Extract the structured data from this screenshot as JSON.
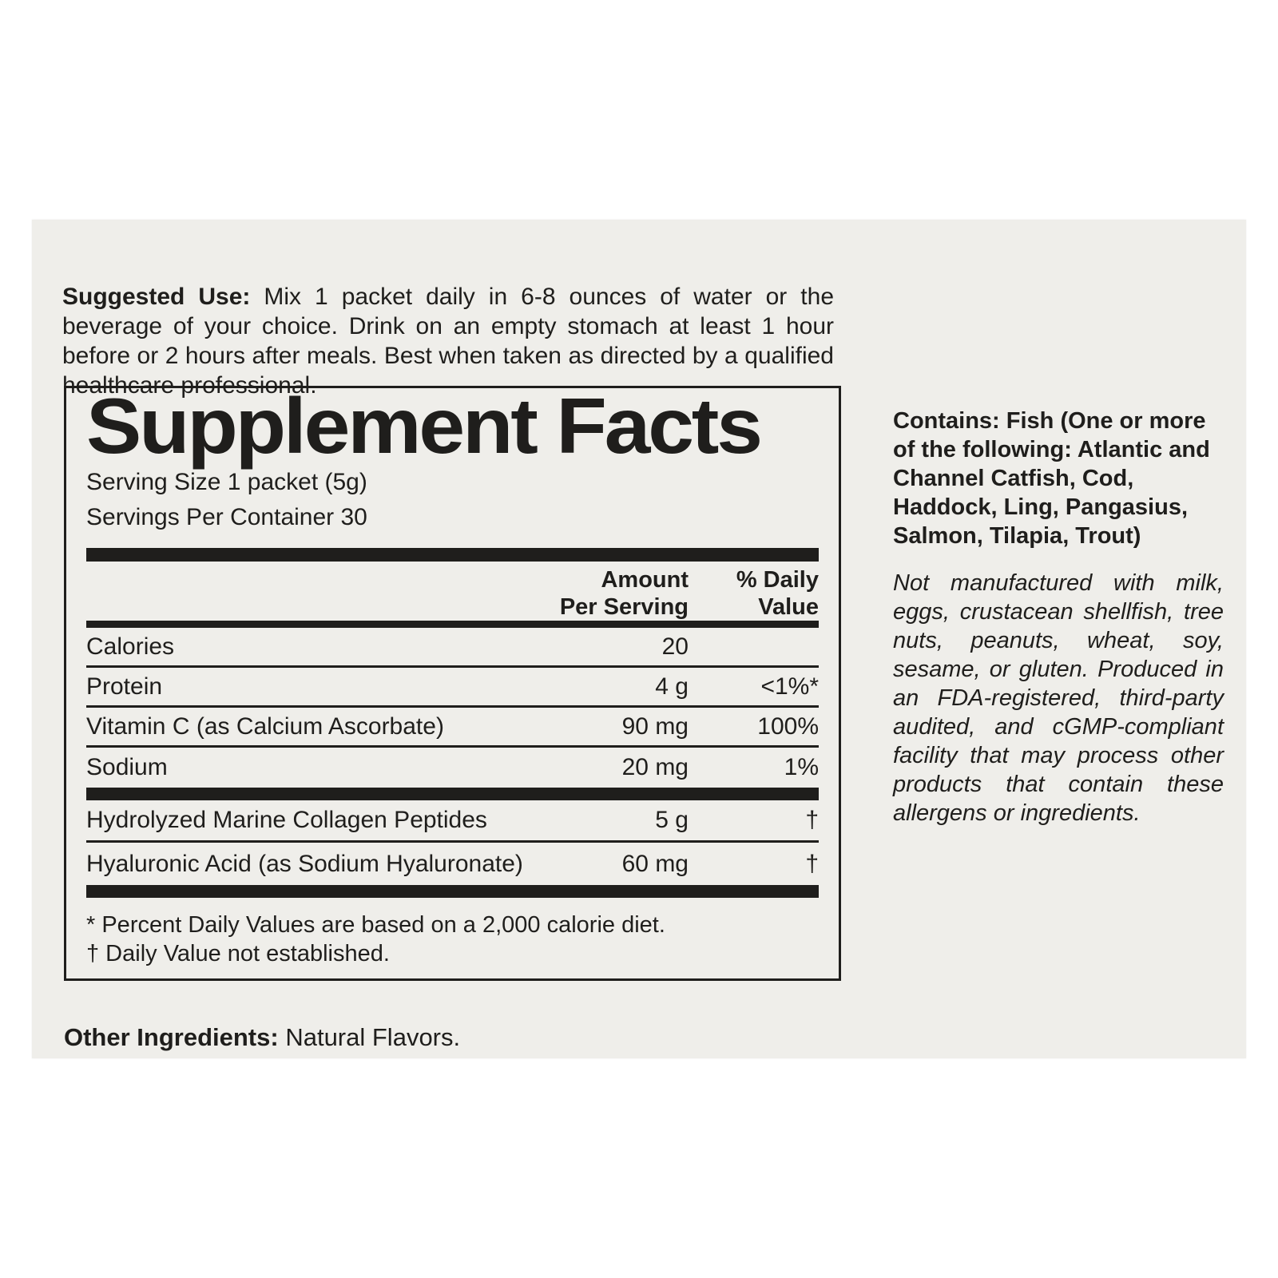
{
  "label": {
    "suggested_use": {
      "heading": "Suggested Use:",
      "text": "Mix 1 packet daily in 6-8 ounces of water or the beverage of your choice. Drink on an empty stomach at least 1 hour before or 2 hours after meals. Best when taken as directed by a qualified healthcare professional."
    },
    "supplement_facts": {
      "title": "Supplement Facts",
      "serving_size": "Serving Size 1 packet (5g)",
      "servings_per_container": "Servings Per Container 30",
      "header": {
        "amount": [
          "Amount",
          "Per Serving"
        ],
        "daily_value": [
          "% Daily",
          "Value"
        ]
      },
      "rows": [
        {
          "name": "Calories",
          "amount": "20",
          "dv": ""
        },
        {
          "name": "Protein",
          "amount": "4 g",
          "dv": "<1%*"
        },
        {
          "name": "Vitamin C (as Calcium Ascorbate)",
          "amount": "90 mg",
          "dv": "100%"
        },
        {
          "name": "Sodium",
          "amount": "20 mg",
          "dv": "1%"
        },
        {
          "name": "Hydrolyzed Marine Collagen Peptides",
          "amount": "5 g",
          "dv": "†"
        },
        {
          "name": "Hyaluronic Acid (as Sodium Hyaluronate)",
          "amount": "60 mg",
          "dv": "†"
        }
      ],
      "footnotes": [
        "* Percent Daily Values are based on a 2,000 calorie diet.",
        "† Daily Value not established."
      ]
    },
    "other_ingredients": {
      "heading": "Other Ingredients:",
      "text": "Natural Flavors."
    },
    "contains": "Contains: Fish (One or more of the following: Atlantic and Channel Catfish, Cod, Haddock, Ling, Pangasius, Salmon, Tilapia, Trout)",
    "allergen_note": "Not manufactured with milk, eggs, crustacean shellfish, tree nuts, peanuts, wheat, soy, sesame, or gluten. Produced in an FDA-registered, third-party audited, and cGMP-compliant facility that may process other products that contain these allergens or ingredients.",
    "colors": {
      "page_bg": "#ffffff",
      "label_bg": "#efeeea",
      "text": "#1f1e1c"
    }
  }
}
